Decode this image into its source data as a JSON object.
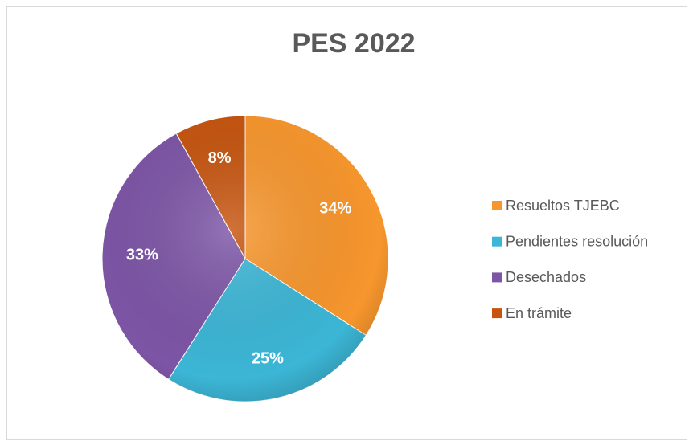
{
  "chart_data": {
    "type": "pie",
    "title": "PES 2022",
    "categories": [
      "Resueltos TJEBC",
      "Pendientes resolución",
      "Desechados",
      "En trámite"
    ],
    "values": [
      34,
      25,
      33,
      8
    ],
    "value_labels": [
      "34%",
      "25%",
      "33%",
      "8%"
    ],
    "colors": [
      "#f7962d",
      "#3cb6d6",
      "#7d55a6",
      "#c6540e"
    ],
    "legend": "right"
  }
}
